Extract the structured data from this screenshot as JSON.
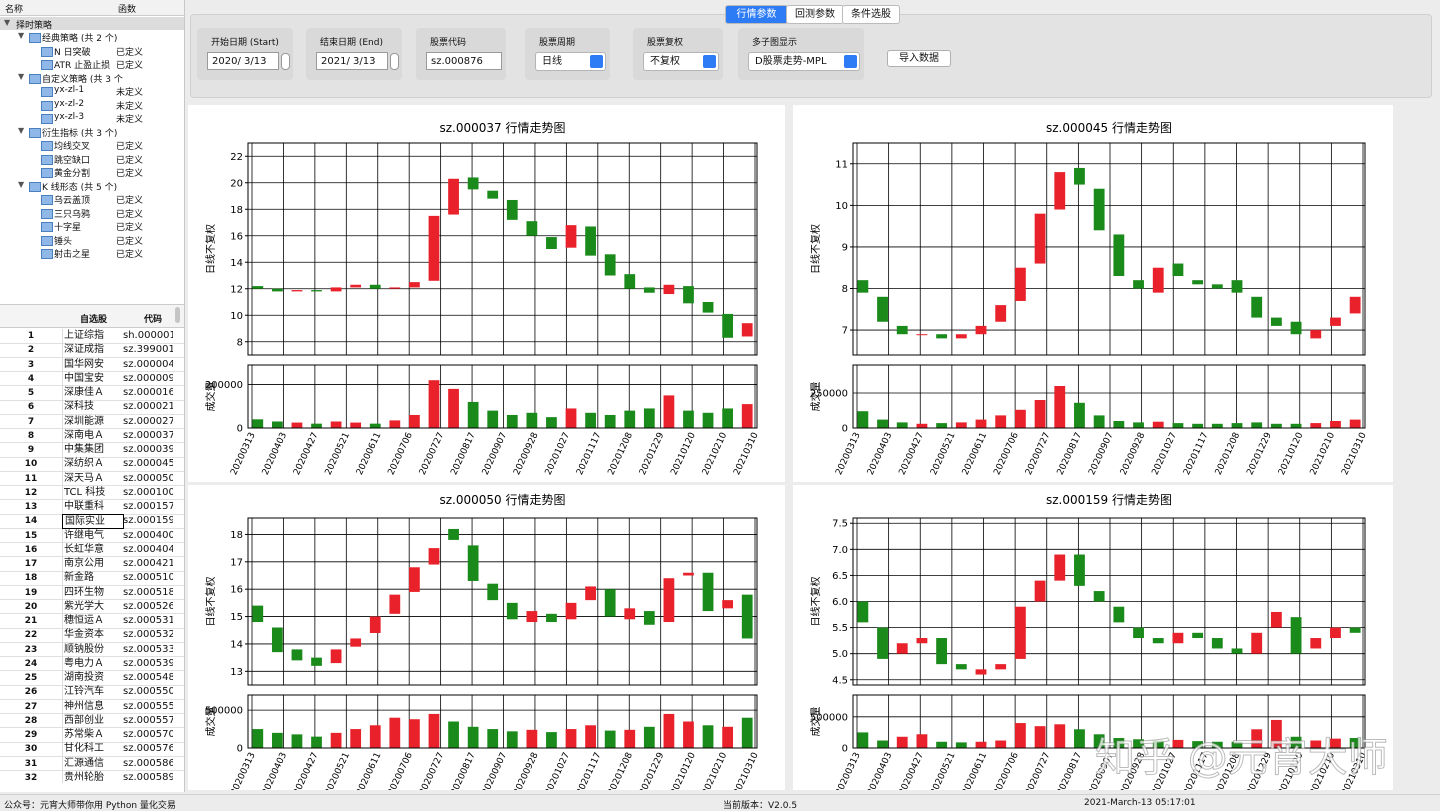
{
  "tree": {
    "columns": [
      "名称",
      "函数"
    ],
    "root": "择时策略",
    "groups": [
      {
        "label": "经典策略 (共 2 个)",
        "items": [
          {
            "name": "N 日突破",
            "status": "已定义"
          },
          {
            "name": "ATR 止盈止损",
            "status": "已定义"
          }
        ]
      },
      {
        "label": "自定义策略 (共 3 个",
        "items": [
          {
            "name": "yx-zl-1",
            "status": "未定义"
          },
          {
            "name": "yx-zl-2",
            "status": "未定义"
          },
          {
            "name": "yx-zl-3",
            "status": "未定义"
          }
        ]
      },
      {
        "label": "衍生指标 (共 3 个)",
        "items": [
          {
            "name": "均线交叉",
            "status": "已定义"
          },
          {
            "name": "跳空缺口",
            "status": "已定义"
          },
          {
            "name": "黄金分割",
            "status": "已定义"
          }
        ]
      },
      {
        "label": "K 线形态 (共 5 个)",
        "items": [
          {
            "name": "乌云盖顶",
            "status": "已定义"
          },
          {
            "name": "三只乌鸦",
            "status": "已定义"
          },
          {
            "name": "十字星",
            "status": "已定义"
          },
          {
            "name": "锤头",
            "status": "已定义"
          },
          {
            "name": "射击之星",
            "status": "已定义"
          }
        ]
      }
    ]
  },
  "table": {
    "columns": [
      "自选股",
      "代码"
    ],
    "rows": [
      [
        "1",
        "上证综指",
        "sh.000001"
      ],
      [
        "2",
        "深证成指",
        "sz.399001"
      ],
      [
        "3",
        "国华网安",
        "sz.000004"
      ],
      [
        "4",
        "中国宝安",
        "sz.000009"
      ],
      [
        "5",
        "深康佳Ａ",
        "sz.000016"
      ],
      [
        "6",
        "深科技",
        "sz.000021"
      ],
      [
        "7",
        "深圳能源",
        "sz.000027"
      ],
      [
        "8",
        "深南电Ａ",
        "sz.000037"
      ],
      [
        "9",
        "中集集团",
        "sz.000039"
      ],
      [
        "10",
        "深纺织Ａ",
        "sz.000045"
      ],
      [
        "11",
        "深天马Ａ",
        "sz.000050"
      ],
      [
        "12",
        "TCL 科技",
        "sz.000100"
      ],
      [
        "13",
        "中联重科",
        "sz.000157"
      ],
      [
        "14",
        "国际实业",
        "sz.000159"
      ],
      [
        "15",
        "许继电气",
        "sz.000400"
      ],
      [
        "16",
        "长虹华意",
        "sz.000404"
      ],
      [
        "17",
        "南京公用",
        "sz.000421"
      ],
      [
        "18",
        "新金路",
        "sz.000510"
      ],
      [
        "19",
        "四环生物",
        "sz.000518"
      ],
      [
        "20",
        "紫光学大",
        "sz.000526"
      ],
      [
        "21",
        "穗恒运Ａ",
        "sz.000531"
      ],
      [
        "22",
        "华金资本",
        "sz.000532"
      ],
      [
        "23",
        "顺钠股份",
        "sz.000533"
      ],
      [
        "24",
        "粤电力Ａ",
        "sz.000539"
      ],
      [
        "25",
        "湖南投资",
        "sz.000548"
      ],
      [
        "26",
        "江铃汽车",
        "sz.000550"
      ],
      [
        "27",
        "神州信息",
        "sz.000555"
      ],
      [
        "28",
        "西部创业",
        "sz.000557"
      ],
      [
        "29",
        "苏常柴Ａ",
        "sz.000570"
      ],
      [
        "30",
        "甘化科工",
        "sz.000576"
      ],
      [
        "31",
        "汇源通信",
        "sz.000586"
      ],
      [
        "32",
        "贵州轮胎",
        "sz.000589"
      ]
    ],
    "selected_row": 13
  },
  "tabs": {
    "labels": [
      "行情参数",
      "回测参数",
      "条件选股"
    ],
    "active": 0
  },
  "form": {
    "fields": [
      {
        "label": "开始日期 (Start)",
        "value": "2020/  3/13",
        "kind": "date"
      },
      {
        "label": "结束日期 (End)",
        "value": "2021/  3/13",
        "kind": "date"
      },
      {
        "label": "股票代码",
        "value": "sz.000876",
        "kind": "text"
      },
      {
        "label": "股票周期",
        "value": "日线",
        "kind": "select"
      },
      {
        "label": "股票复权",
        "value": "不复权",
        "kind": "select"
      },
      {
        "label": "多子图显示",
        "value": "D股票走势-MPL",
        "kind": "select"
      }
    ],
    "button": "导入数据"
  },
  "status": {
    "left": "公众号：元宵大师带你用 Python 量化交易",
    "version": "当前版本：V2.0.5",
    "time": "2021-March-13 05:17:01"
  },
  "watermark": "知乎 @元宵大师",
  "chart_data": [
    {
      "type": "candlestick",
      "title": "sz.000037  行情走势图",
      "y_label": "日线不复权",
      "volume_label": "成交量",
      "xticks": [
        "20200313",
        "20200403",
        "20200427",
        "20200521",
        "20200611",
        "20200706",
        "20200727",
        "20200817",
        "20200907",
        "20200928",
        "20201027",
        "20201117",
        "20201208",
        "20201229",
        "20210120",
        "20210210",
        "20210310"
      ],
      "ylim": [
        7,
        23
      ],
      "yticks": [
        8,
        10,
        12,
        14,
        16,
        18,
        20,
        22
      ],
      "volume_ylim": [
        0,
        290000
      ],
      "volume_yticks": [
        0,
        200000
      ],
      "open": [
        12.2,
        12.0,
        11.8,
        11.9,
        11.8,
        12.1,
        12.3,
        12.0,
        12.1,
        12.6,
        17.6,
        20.4,
        19.4,
        18.7,
        17.1,
        15.9,
        15.1,
        16.7,
        14.6,
        13.1,
        12.1,
        11.6,
        12.2,
        11.0,
        10.1,
        8.4
      ],
      "close": [
        12.0,
        11.8,
        11.9,
        11.8,
        12.1,
        12.3,
        12.0,
        12.1,
        12.5,
        17.5,
        20.3,
        19.5,
        18.8,
        17.2,
        16.0,
        15.0,
        16.8,
        14.5,
        13.0,
        12.0,
        11.7,
        12.3,
        10.9,
        10.2,
        8.3,
        9.4
      ],
      "volume": [
        40000,
        30000,
        25000,
        20000,
        30000,
        25000,
        20000,
        35000,
        60000,
        220000,
        180000,
        120000,
        80000,
        60000,
        70000,
        50000,
        90000,
        70000,
        60000,
        80000,
        90000,
        150000,
        80000,
        70000,
        90000,
        110000
      ],
      "up_color": "#e8212a",
      "down_color": "#1a8a1a",
      "grid": true
    },
    {
      "type": "candlestick",
      "title": "sz.000045  行情走势图",
      "y_label": "日线不复权",
      "volume_label": "成交量",
      "xticks": [
        "20200313",
        "20200403",
        "20200427",
        "20200521",
        "20200611",
        "20200706",
        "20200727",
        "20200817",
        "20200907",
        "20200928",
        "20201027",
        "20201117",
        "20201208",
        "20201229",
        "20210120",
        "20210210",
        "20210310"
      ],
      "ylim": [
        6.4,
        11.5
      ],
      "yticks": [
        7,
        8,
        9,
        10,
        11
      ],
      "volume_ylim": [
        0,
        450000
      ],
      "volume_yticks": [
        0,
        250000
      ],
      "open": [
        8.2,
        7.8,
        7.1,
        6.9,
        6.9,
        6.8,
        6.9,
        7.2,
        7.7,
        8.6,
        9.9,
        10.9,
        10.4,
        9.3,
        8.2,
        7.9,
        8.6,
        8.2,
        8.1,
        8.2,
        7.8,
        7.3,
        7.2,
        6.8,
        7.1,
        7.4
      ],
      "close": [
        7.9,
        7.2,
        6.9,
        6.9,
        6.8,
        6.9,
        7.1,
        7.6,
        8.5,
        9.8,
        10.8,
        10.5,
        9.4,
        8.3,
        8.0,
        8.5,
        8.3,
        8.1,
        8.0,
        7.9,
        7.3,
        7.1,
        6.9,
        7.0,
        7.3,
        7.8
      ],
      "volume": [
        120000,
        60000,
        40000,
        30000,
        35000,
        40000,
        60000,
        90000,
        130000,
        200000,
        300000,
        180000,
        90000,
        50000,
        40000,
        45000,
        35000,
        30000,
        30000,
        35000,
        40000,
        30000,
        30000,
        35000,
        50000,
        60000
      ],
      "up_color": "#e8212a",
      "down_color": "#1a8a1a",
      "grid": true
    },
    {
      "type": "candlestick",
      "title": "sz.000050  行情走势图",
      "y_label": "日线不复权",
      "volume_label": "成交量",
      "xticks": [
        "20200313",
        "20200403",
        "20200427",
        "20200521",
        "20200611",
        "20200706",
        "20200727",
        "20200817",
        "20200907",
        "20200928",
        "20201027",
        "20201117",
        "20201208",
        "20201229",
        "20210120",
        "20210210",
        "20210310"
      ],
      "ylim": [
        12.5,
        18.6
      ],
      "yticks": [
        13,
        14,
        15,
        16,
        17,
        18
      ],
      "volume_ylim": [
        0,
        700000
      ],
      "volume_yticks": [
        0,
        500000
      ],
      "open": [
        15.4,
        14.6,
        13.8,
        13.5,
        13.3,
        13.9,
        14.4,
        15.1,
        15.9,
        16.9,
        18.2,
        17.6,
        16.2,
        15.5,
        14.8,
        15.1,
        14.9,
        15.6,
        16.0,
        14.9,
        15.2,
        14.8,
        16.5,
        16.6,
        15.3,
        15.8
      ],
      "close": [
        14.8,
        13.7,
        13.4,
        13.2,
        13.8,
        14.2,
        15.0,
        15.8,
        16.8,
        17.5,
        17.8,
        16.3,
        15.6,
        14.9,
        15.2,
        14.8,
        15.5,
        16.1,
        15.0,
        15.3,
        14.7,
        16.4,
        16.6,
        15.2,
        15.6,
        14.2
      ],
      "volume": [
        250000,
        200000,
        180000,
        150000,
        200000,
        250000,
        300000,
        400000,
        380000,
        450000,
        350000,
        280000,
        250000,
        220000,
        240000,
        210000,
        250000,
        300000,
        230000,
        240000,
        280000,
        450000,
        350000,
        300000,
        280000,
        400000
      ],
      "up_color": "#e8212a",
      "down_color": "#1a8a1a",
      "grid": true
    },
    {
      "type": "candlestick",
      "title": "sz.000159  行情走势图",
      "y_label": "日线不复权",
      "volume_label": "成交量",
      "xticks": [
        "20200313",
        "20200403",
        "20200427",
        "20200521",
        "20200611",
        "20200706",
        "20200727",
        "20200817",
        "20200907",
        "20200928",
        "20201027",
        "20201117",
        "20201208",
        "20201229",
        "20210120",
        "20210210",
        "20210310"
      ],
      "ylim": [
        4.4,
        7.6
      ],
      "yticks": [
        4.5,
        {
          "value": 5,
          "label": "5.0"
        },
        5.5,
        {
          "value": 6,
          "label": "6.0"
        },
        6.5,
        {
          "value": 7,
          "label": "7.0"
        },
        7.5
      ],
      "volume_ylim": [
        0,
        850000
      ],
      "volume_yticks": [
        0,
        500000
      ],
      "open": [
        6.0,
        5.5,
        5.0,
        5.2,
        5.3,
        4.8,
        4.6,
        4.7,
        4.9,
        6.0,
        6.4,
        6.9,
        6.2,
        5.9,
        5.5,
        5.3,
        5.2,
        5.4,
        5.3,
        5.1,
        5.0,
        5.5,
        5.7,
        5.1,
        5.3,
        5.5
      ],
      "close": [
        5.6,
        4.9,
        5.2,
        5.3,
        4.8,
        4.7,
        4.7,
        4.8,
        5.9,
        6.4,
        6.9,
        6.3,
        6.0,
        5.6,
        5.3,
        5.2,
        5.4,
        5.3,
        5.1,
        5.0,
        5.4,
        5.8,
        5.0,
        5.3,
        5.5,
        5.4
      ],
      "volume": [
        250000,
        120000,
        180000,
        220000,
        100000,
        90000,
        100000,
        120000,
        400000,
        350000,
        380000,
        300000,
        220000,
        160000,
        140000,
        120000,
        130000,
        110000,
        100000,
        100000,
        300000,
        450000,
        180000,
        120000,
        150000,
        160000
      ],
      "up_color": "#e8212a",
      "down_color": "#1a8a1a",
      "grid": true
    }
  ]
}
